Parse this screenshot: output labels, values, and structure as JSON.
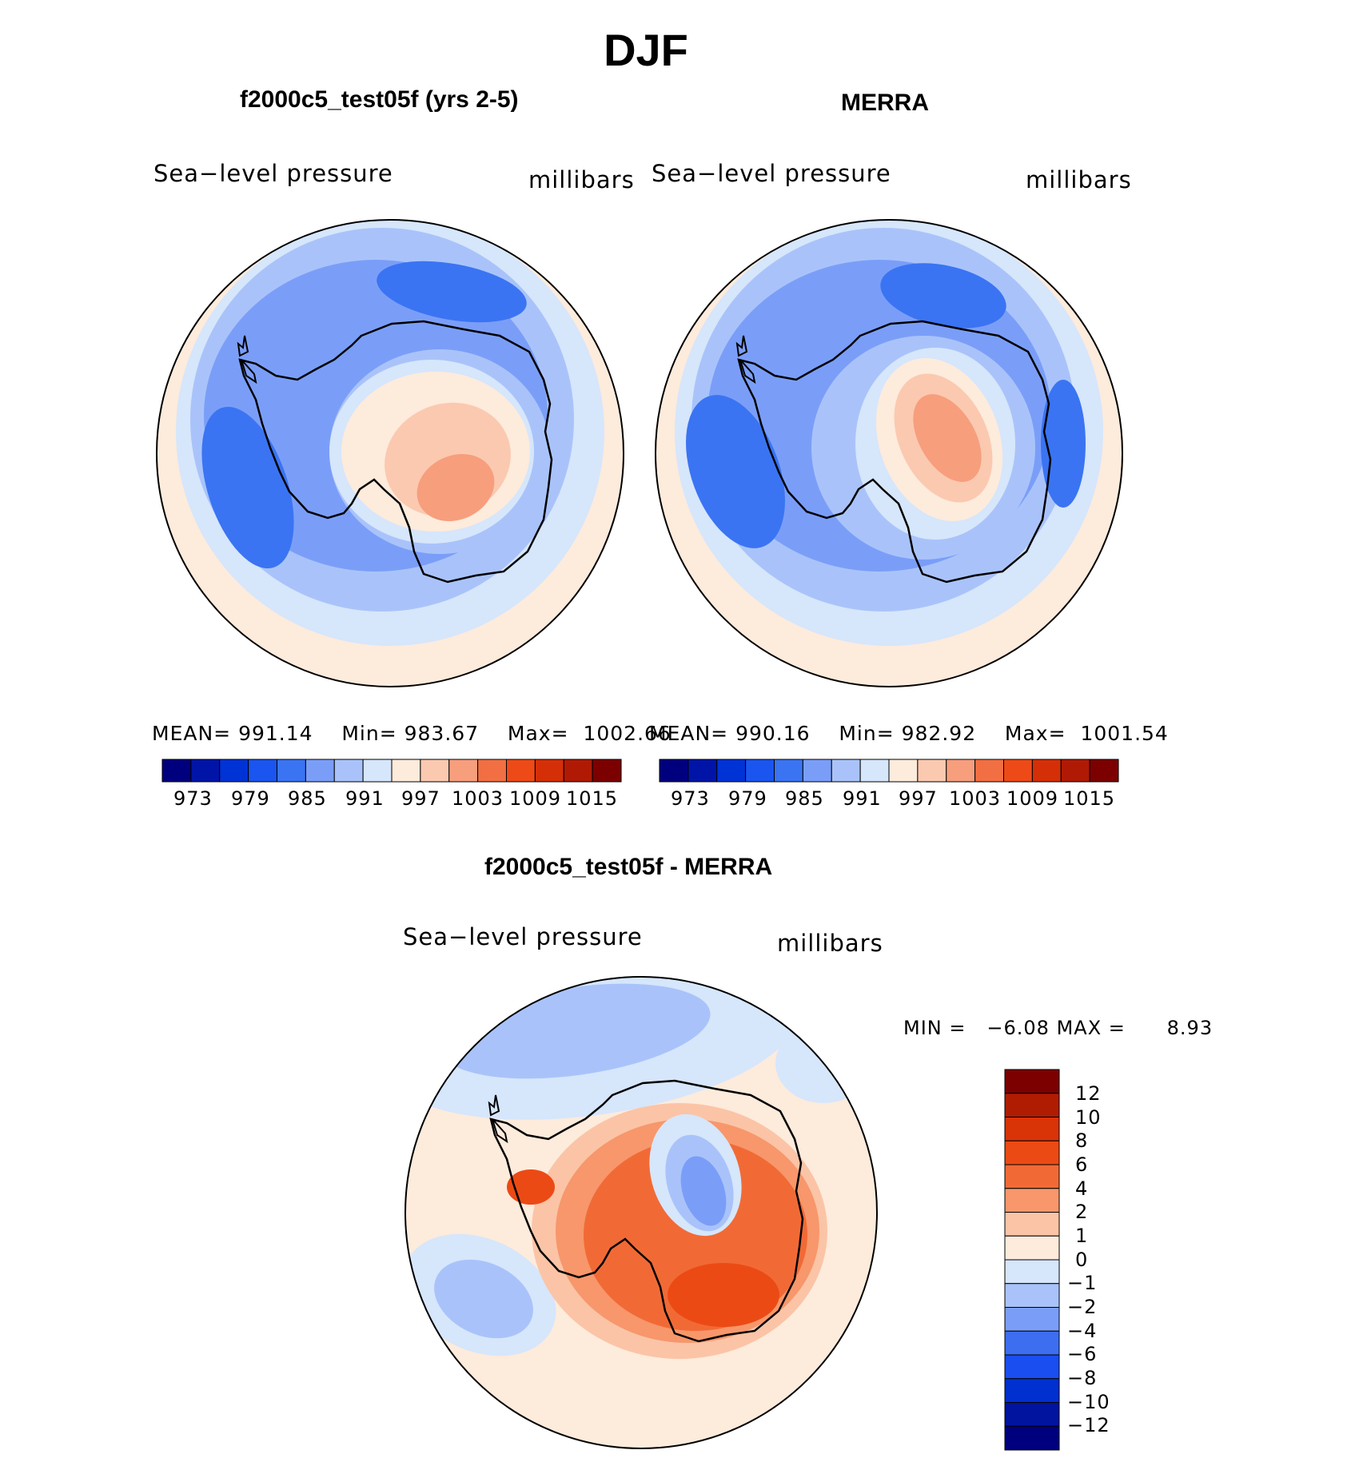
{
  "title": "DJF",
  "colors": {
    "abs_scale": [
      "#00007f",
      "#0015a8",
      "#0033d6",
      "#1a55f0",
      "#3a74f2",
      "#7a9ef8",
      "#a9c3fa",
      "#d6e6fb",
      "#fdebdc",
      "#fbc9b0",
      "#f79e7d",
      "#f16f42",
      "#ee4a17",
      "#d52f08",
      "#b01a04",
      "#7d0000"
    ],
    "diff_scale": [
      "#00007f",
      "#0014a0",
      "#0030d0",
      "#1a4ef0",
      "#3d6ef0",
      "#7a9ef8",
      "#a9c3fa",
      "#d6e6fb",
      "#fdebdc",
      "#fbc4a6",
      "#f7976b",
      "#f16a36",
      "#ec4a14",
      "#d83408",
      "#b01c02",
      "#7d0000"
    ],
    "coast": "#000000"
  },
  "panels": {
    "model": {
      "title": "f2000c5_test05f (yrs 2-5)",
      "variable": "Sea−level pressure",
      "units": "millibars",
      "stats": {
        "mean_label": "MEAN=",
        "mean": "991.14",
        "min_label": "Min=",
        "min": "983.67",
        "max_label": "Max=",
        "max": "1002.66"
      }
    },
    "obs": {
      "title": "MERRA",
      "variable": "Sea−level pressure",
      "units": "millibars",
      "stats": {
        "mean_label": "MEAN=",
        "mean": "990.16",
        "min_label": "Min=",
        "min": "982.92",
        "max_label": "Max=",
        "max": "1001.54"
      }
    },
    "diff": {
      "title": "f2000c5_test05f - MERRA",
      "variable": "Sea−level pressure",
      "units": "millibars",
      "min_label": "MIN =",
      "min": "−6.08",
      "max_label": "MAX =",
      "max": "8.93"
    }
  },
  "abs_colorbar": {
    "labels": [
      "973",
      "979",
      "985",
      "991",
      "997",
      "1003",
      "1009",
      "1015"
    ]
  },
  "diff_colorbar": {
    "labels": [
      "12",
      "10",
      "8",
      "6",
      "4",
      "2",
      "1",
      "0",
      "−1",
      "−2",
      "−4",
      "−6",
      "−8",
      "−10",
      "−12"
    ]
  }
}
